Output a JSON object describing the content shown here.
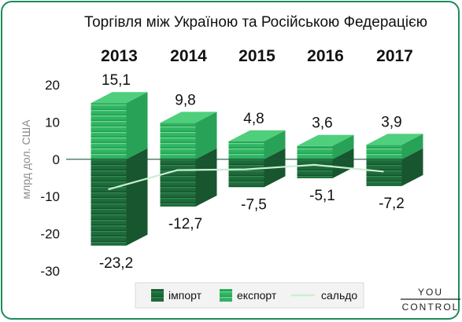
{
  "chart_data": {
    "type": "bar",
    "title": "Торгівля між Україною та Російською Федерацією",
    "ylabel": "млрд дол. США",
    "categories": [
      "2013",
      "2014",
      "2015",
      "2016",
      "2017"
    ],
    "series": [
      {
        "name": "імпорт",
        "values": [
          -23.2,
          -12.7,
          -7.5,
          -5.1,
          -7.2
        ],
        "labels": [
          "-23,2",
          "-12,7",
          "-7,5",
          "-5,1",
          "-7,2"
        ],
        "color": "#1e6b3a"
      },
      {
        "name": "експорт",
        "values": [
          15.1,
          9.8,
          4.8,
          3.6,
          3.9
        ],
        "labels": [
          "15,1",
          "9,8",
          "4,8",
          "3,6",
          "3,9"
        ],
        "color": "#2fb562"
      },
      {
        "name": "сальдо",
        "type": "line",
        "values": [
          -8.1,
          -2.9,
          -2.7,
          -1.5,
          -3.3
        ],
        "color": "#c9efd2"
      }
    ],
    "yticks": [
      20,
      10,
      0,
      -10,
      -20,
      -30
    ],
    "ylim": [
      -30,
      20
    ],
    "legend_position": "bottom"
  },
  "brand": {
    "line1": "YOU",
    "line2": "CONTROL"
  },
  "colors": {
    "frame": "#1f8a5a",
    "import": "#1e6b3a",
    "export": "#2fb562",
    "saldo": "#c9efd2"
  }
}
